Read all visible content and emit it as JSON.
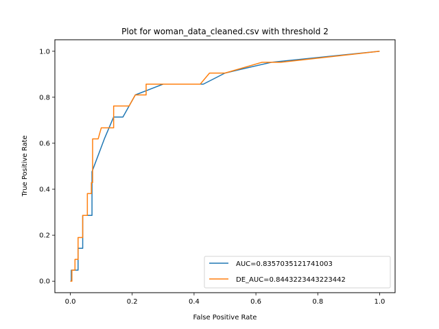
{
  "chart_data": {
    "type": "line",
    "title": "Plot for woman_data_cleaned.csv with threshold 2",
    "xlabel": "False Positive Rate",
    "ylabel": "True Positive Rate",
    "xlim": [
      -0.05,
      1.05
    ],
    "ylim": [
      -0.05,
      1.05
    ],
    "xticks": [
      "0.0",
      "0.2",
      "0.4",
      "0.6",
      "0.8",
      "1.0"
    ],
    "yticks": [
      "0.0",
      "0.2",
      "0.4",
      "0.6",
      "0.8",
      "1.0"
    ],
    "xtick_values": [
      0,
      0.2,
      0.4,
      0.6,
      0.8,
      1.0
    ],
    "ytick_values": [
      0,
      0.2,
      0.4,
      0.6,
      0.8,
      1.0
    ],
    "grid": false,
    "legend_position": "lower-right",
    "series": [
      {
        "name": "AUC=0.8357035121741003",
        "color": "#1f77b4",
        "x": [
          0,
          0.003,
          0.003,
          0.015,
          0.015,
          0.025,
          0.025,
          0.04,
          0.04,
          0.065,
          0.065,
          0.07,
          0.07,
          0.11,
          0.14,
          0.17,
          0.21,
          0.3,
          0.43,
          0.5,
          0.55,
          0.65,
          1.0
        ],
        "y": [
          0,
          0,
          0.048,
          0.048,
          0.048,
          0.048,
          0.143,
          0.143,
          0.286,
          0.286,
          0.286,
          0.286,
          0.476,
          0.619,
          0.714,
          0.714,
          0.81,
          0.857,
          0.857,
          0.905,
          0.921,
          0.952,
          1.0
        ]
      },
      {
        "name": "DE_AUC=0.8443223443223442",
        "color": "#ff7f0e",
        "x": [
          0,
          0.005,
          0.005,
          0.015,
          0.015,
          0.025,
          0.025,
          0.04,
          0.04,
          0.055,
          0.055,
          0.068,
          0.068,
          0.072,
          0.072,
          0.09,
          0.1,
          0.14,
          0.14,
          0.19,
          0.21,
          0.245,
          0.245,
          0.42,
          0.45,
          0.5,
          0.62,
          0.68,
          1.0
        ],
        "y": [
          0,
          0,
          0.048,
          0.048,
          0.095,
          0.095,
          0.19,
          0.19,
          0.286,
          0.286,
          0.381,
          0.381,
          0.429,
          0.429,
          0.619,
          0.619,
          0.667,
          0.667,
          0.762,
          0.762,
          0.81,
          0.81,
          0.857,
          0.857,
          0.905,
          0.905,
          0.952,
          0.952,
          1.0
        ]
      }
    ]
  }
}
